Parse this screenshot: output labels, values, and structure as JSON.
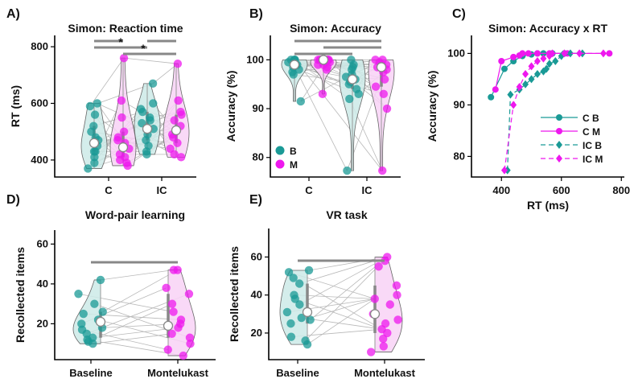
{
  "colors": {
    "B": "#1a9a96",
    "M": "#ee18ee",
    "B_fill": "#cdeae8",
    "M_fill": "#f8d2f6",
    "bar": "#888888",
    "line": "#b8b8b8"
  },
  "chart_data": [
    {
      "id": "A",
      "panel_label": "A)",
      "type": "violin",
      "title": "Simon: Reaction time",
      "ylabel": "RT (ms)",
      "ylim": [
        340,
        840
      ],
      "yticks": [
        400,
        600,
        800
      ],
      "categories": [
        "C",
        "IC"
      ],
      "groups": [
        {
          "cat": "C",
          "cond": "B",
          "mean": 460,
          "values": [
            590,
            600,
            560,
            520,
            500,
            470,
            450,
            430,
            410,
            390,
            370,
            430,
            480
          ]
        },
        {
          "cat": "C",
          "cond": "M",
          "mean": 445,
          "values": [
            760,
            610,
            550,
            500,
            480,
            460,
            440,
            420,
            400,
            390,
            380,
            410,
            470
          ]
        },
        {
          "cat": "IC",
          "cond": "B",
          "mean": 510,
          "values": [
            670,
            600,
            570,
            550,
            530,
            510,
            490,
            470,
            450,
            430,
            420,
            580,
            540
          ]
        },
        {
          "cat": "IC",
          "cond": "M",
          "mean": 505,
          "values": [
            740,
            610,
            570,
            540,
            520,
            500,
            480,
            460,
            440,
            420,
            410,
            490,
            560
          ]
        }
      ],
      "sig_bars": [
        {
          "from": "C-B",
          "to": "C-M",
          "level": 0,
          "label": ""
        },
        {
          "from": "C-B",
          "to": "IC-B",
          "level": 1,
          "label": "*"
        },
        {
          "from": "C-M",
          "to": "IC-M",
          "level": 2,
          "label": "*"
        },
        {
          "from": "IC-B",
          "to": "IC-M",
          "level": 0,
          "label": ""
        }
      ]
    },
    {
      "id": "B",
      "panel_label": "B)",
      "type": "violin",
      "title": "Simon: Accuracy",
      "ylabel": "Accuracy (%)",
      "ylim": [
        76,
        105
      ],
      "yticks": [
        80,
        90,
        100
      ],
      "categories": [
        "C",
        "IC"
      ],
      "legend": [
        {
          "cond": "B",
          "label": "B"
        },
        {
          "cond": "M",
          "label": "M"
        }
      ],
      "groups": [
        {
          "cat": "C",
          "cond": "B",
          "mean": 99,
          "values": [
            100,
            100,
            100,
            99.5,
            99,
            99,
            98.5,
            98,
            97.5,
            97,
            100,
            91.5,
            99
          ]
        },
        {
          "cat": "C",
          "cond": "M",
          "mean": 100,
          "values": [
            100,
            100,
            100,
            100,
            99.5,
            99,
            99,
            98.5,
            98,
            100,
            93,
            99.5,
            100
          ]
        },
        {
          "cat": "IC",
          "cond": "B",
          "mean": 96,
          "values": [
            100,
            99,
            98,
            97,
            96.5,
            96,
            95.5,
            95,
            94,
            93,
            92,
            77.3,
            98.5
          ]
        },
        {
          "cat": "IC",
          "cond": "M",
          "mean": 98.5,
          "values": [
            100,
            100,
            99.5,
            99,
            98.5,
            98,
            97.5,
            96,
            94.5,
            93,
            90,
            77.3,
            99
          ]
        }
      ],
      "sig_bars": [
        {
          "from": "C-B",
          "to": "IC-M",
          "level": 0,
          "label": ""
        },
        {
          "from": "C-M",
          "to": "IC-M",
          "level": 1,
          "label": ""
        },
        {
          "from": "C-B",
          "to": "IC-B",
          "level": 2,
          "label": ""
        }
      ]
    },
    {
      "id": "C",
      "panel_label": "C)",
      "type": "line",
      "title": "Simon: Accuracy x RT",
      "xlabel": "RT (ms)",
      "ylabel": "Accuracy (%)",
      "xlim": [
        300,
        810
      ],
      "ylim": [
        76,
        103.5
      ],
      "xticks": [
        400,
        600,
        800
      ],
      "yticks": [
        80,
        90,
        100
      ],
      "series": [
        {
          "name": "C B",
          "cond": "B",
          "dashed": false,
          "marker": "circle",
          "x": [
            365,
            410,
            440,
            470,
            500,
            520,
            540,
            570,
            610
          ],
          "y": [
            91.5,
            97,
            98.5,
            99.5,
            99.8,
            100,
            100,
            100,
            100
          ]
        },
        {
          "name": "C M",
          "cond": "M",
          "dashed": false,
          "marker": "circle",
          "x": [
            380,
            400,
            440,
            460,
            470,
            490,
            520,
            560,
            620,
            760
          ],
          "y": [
            93,
            98.5,
            99.3,
            99.6,
            100,
            100,
            100,
            100,
            100,
            100
          ]
        },
        {
          "name": "IC B",
          "cond": "B",
          "dashed": true,
          "marker": "diamond",
          "x": [
            420,
            430,
            460,
            480,
            500,
            520,
            540,
            550,
            560,
            580,
            600,
            630,
            670
          ],
          "y": [
            77.3,
            92,
            93,
            94,
            95,
            96,
            96.5,
            97,
            98,
            98.5,
            99.5,
            100,
            100
          ]
        },
        {
          "name": "IC M",
          "cond": "M",
          "dashed": true,
          "marker": "diamond",
          "x": [
            410,
            440,
            460,
            480,
            500,
            520,
            540,
            560,
            570,
            610,
            660,
            740
          ],
          "y": [
            77.3,
            90,
            93.5,
            96,
            97.5,
            98.5,
            99,
            99.5,
            100,
            100,
            100,
            100
          ]
        }
      ]
    },
    {
      "id": "D",
      "panel_label": "D)",
      "type": "violin_paired",
      "title": "Word-pair learning",
      "ylabel": "Recollected items",
      "ylim": [
        2,
        67
      ],
      "yticks": [
        20,
        40,
        60
      ],
      "categories": [
        "Baseline",
        "Montelukast"
      ],
      "groups": [
        {
          "cat": "Baseline",
          "cond": "B",
          "mean": 21,
          "values": [
            42,
            35,
            30,
            26,
            25,
            22,
            20,
            18,
            17,
            15,
            13,
            12,
            11,
            10
          ]
        },
        {
          "cat": "Montelukast",
          "cond": "M",
          "mean": 19,
          "values": [
            47,
            47,
            38,
            35,
            30,
            26,
            22,
            20,
            18,
            15,
            13,
            10,
            7,
            4
          ]
        }
      ],
      "sig_bars": [
        {
          "from": "Baseline",
          "to": "Montelukast",
          "level": 0,
          "label": ""
        }
      ]
    },
    {
      "id": "E",
      "panel_label": "E)",
      "type": "violin_paired",
      "title": "VR task",
      "ylabel": "Recollected items",
      "ylim": [
        6,
        75
      ],
      "yticks": [
        20,
        40,
        60
      ],
      "categories": [
        "Baseline",
        "Montelukast"
      ],
      "groups": [
        {
          "cat": "Baseline",
          "cond": "B",
          "mean": 31,
          "values": [
            53,
            52,
            49,
            46,
            40,
            38,
            35,
            31,
            28,
            27,
            25,
            18,
            16,
            14
          ]
        },
        {
          "cat": "Montelukast",
          "cond": "M",
          "mean": 30,
          "values": [
            60,
            58,
            55,
            45,
            40,
            38,
            35,
            30,
            27,
            25,
            22,
            20,
            17,
            13,
            10
          ]
        }
      ],
      "sig_bars": [
        {
          "from": "Baseline",
          "to": "Montelukast",
          "level": 0,
          "label": ""
        }
      ]
    }
  ]
}
